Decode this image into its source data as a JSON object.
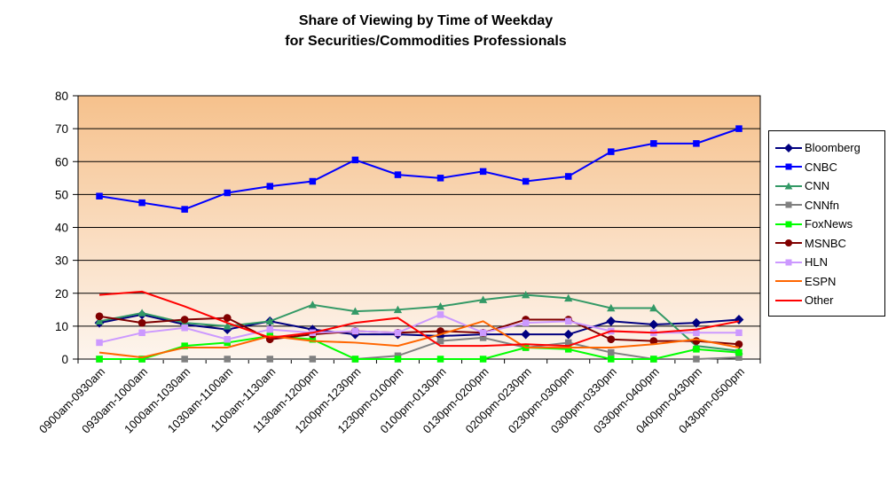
{
  "chart_data": {
    "type": "line",
    "title": "Share of Viewing by Time of Weekday for Securities/Commodities Professionals",
    "title_line1": "Share of Viewing by Time of Weekday",
    "title_line2": "for Securities/Commodities Professionals",
    "categories": [
      "0900am-0930am",
      "0930am-1000am",
      "1000am-1030am",
      "1030am-1100am",
      "1100am-1130am",
      "1130am-1200pm",
      "1200pm-1230pm",
      "1230pm-0100pm",
      "0100pm-0130pm",
      "0130pm-0200pm",
      "0200pm-0230pm",
      "0230pm-0300pm",
      "0300pm-0330pm",
      "0330pm-0400pm",
      "0400pm-0430pm",
      "0430pm-0500pm"
    ],
    "series": [
      {
        "name": "Bloomberg",
        "color": "#000080",
        "marker": "diamond",
        "values": [
          11,
          13.5,
          10.5,
          9,
          11.5,
          9,
          7.5,
          7.5,
          7,
          7.5,
          7.5,
          7.5,
          11.5,
          10.5,
          11,
          12
        ]
      },
      {
        "name": "CNBC",
        "color": "#0000FF",
        "marker": "square",
        "values": [
          49.5,
          47.5,
          45.5,
          50.5,
          52.5,
          54,
          60.5,
          56,
          55,
          57,
          54,
          55.5,
          63,
          65.5,
          65.5,
          70
        ]
      },
      {
        "name": "CNN",
        "color": "#339966",
        "marker": "triangle",
        "values": [
          11.5,
          14,
          11,
          10,
          11.5,
          16.5,
          14.5,
          15,
          16,
          18,
          19.5,
          18.5,
          15.5,
          15.5,
          4,
          2.5
        ]
      },
      {
        "name": "CNNfn",
        "color": "#808080",
        "marker": "square",
        "values": [
          0,
          0,
          0,
          0,
          0,
          0,
          0,
          1,
          5.5,
          6.5,
          3.5,
          5,
          2,
          0,
          0,
          0.5
        ]
      },
      {
        "name": "FoxNews",
        "color": "#00FF00",
        "marker": "square",
        "values": [
          0,
          0,
          4,
          5,
          7,
          6,
          0,
          0,
          0,
          0,
          3.5,
          3,
          0,
          0,
          3,
          2
        ]
      },
      {
        "name": "MSNBC",
        "color": "#800000",
        "marker": "circle",
        "values": [
          13,
          11,
          12,
          12.5,
          6,
          7.5,
          8.5,
          8,
          8.5,
          8,
          12,
          12,
          6,
          5.5,
          5.5,
          4.5
        ]
      },
      {
        "name": "HLN",
        "color": "#CC99FF",
        "marker": "square",
        "values": [
          5,
          8,
          9.5,
          6,
          9,
          8,
          8.5,
          8,
          13.5,
          8,
          11,
          11.5,
          8.5,
          8,
          8,
          8
        ]
      },
      {
        "name": "ESPN",
        "color": "#FF6600",
        "marker": "none",
        "values": [
          2,
          0.5,
          3.5,
          3.5,
          7,
          5.5,
          5,
          4,
          7.5,
          11.5,
          3.5,
          3.5,
          3.5,
          4.5,
          6,
          3.5
        ]
      },
      {
        "name": "Other",
        "color": "#FF0000",
        "marker": "none",
        "values": [
          19.5,
          20.5,
          16,
          11,
          6.5,
          8,
          11,
          12.5,
          4,
          4,
          4.5,
          4,
          8.5,
          8,
          9,
          11.5
        ]
      }
    ],
    "xlabel": "",
    "ylabel": "",
    "ylim": [
      0,
      80
    ],
    "y_ticks": [
      0,
      10,
      20,
      30,
      40,
      50,
      60,
      70,
      80
    ],
    "grid": true,
    "legend_position": "right",
    "plot_bg_top": "#F6C18C",
    "plot_bg_bottom": "#FDF5EE",
    "axis_color": "#000000"
  }
}
